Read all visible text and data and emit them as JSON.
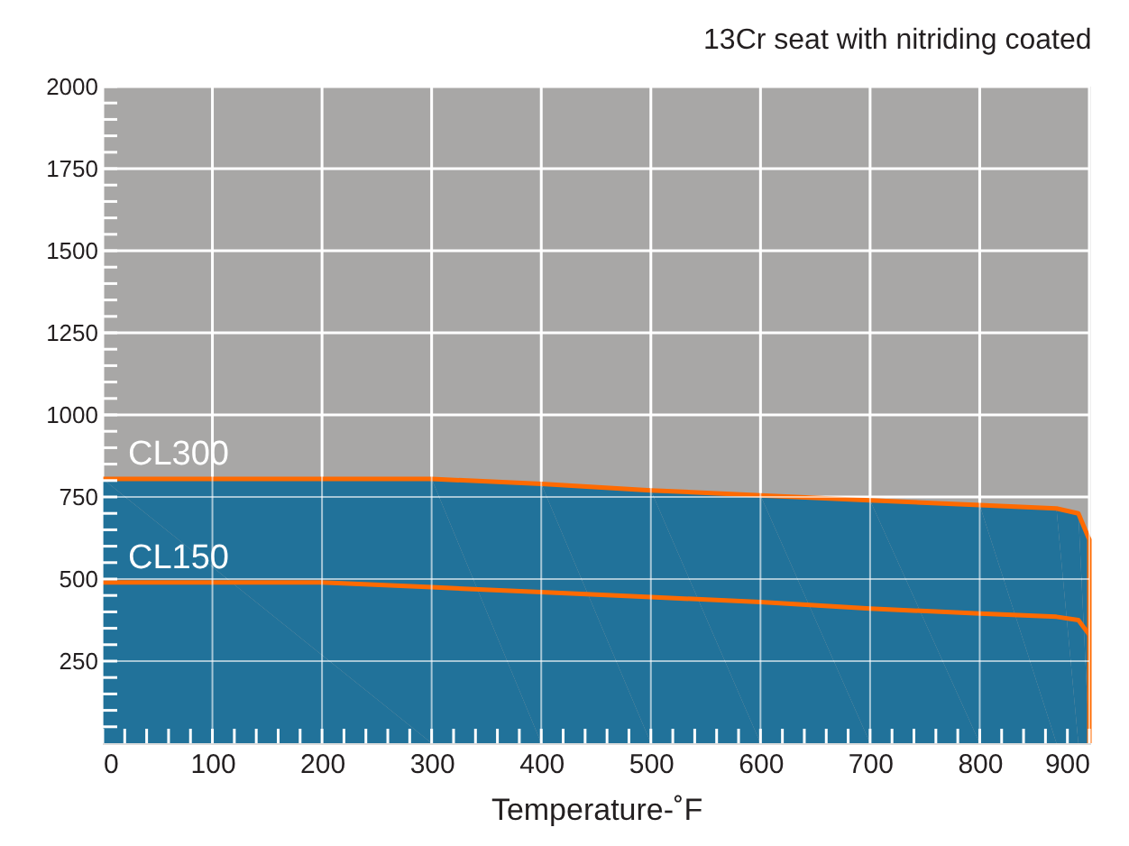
{
  "chart_data": {
    "type": "area",
    "title": "13Cr seat with nitriding coated",
    "xlabel": "Temperature-˚F",
    "xlim": [
      0,
      900
    ],
    "ylim": [
      0,
      2000
    ],
    "xticks": [
      0,
      {
        "value": 20,
        "label": null
      },
      {
        "value": 40,
        "label": null
      },
      {
        "value": 60,
        "label": null
      },
      {
        "value": 80,
        "label": null
      },
      100,
      {
        "value": 120,
        "label": null
      },
      {
        "value": 140,
        "label": null
      },
      {
        "value": 160,
        "label": null
      },
      {
        "value": 180,
        "label": null
      },
      200,
      {
        "value": 220,
        "label": null
      },
      {
        "value": 240,
        "label": null
      },
      {
        "value": 260,
        "label": null
      },
      {
        "value": 280,
        "label": null
      },
      300,
      {
        "value": 320,
        "label": null
      },
      {
        "value": 340,
        "label": null
      },
      {
        "value": 360,
        "label": null
      },
      {
        "value": 380,
        "label": null
      },
      400,
      {
        "value": 420,
        "label": null
      },
      {
        "value": 440,
        "label": null
      },
      {
        "value": 460,
        "label": null
      },
      {
        "value": 480,
        "label": null
      },
      500,
      {
        "value": 520,
        "label": null
      },
      {
        "value": 540,
        "label": null
      },
      {
        "value": 560,
        "label": null
      },
      {
        "value": 580,
        "label": null
      },
      600,
      {
        "value": 620,
        "label": null
      },
      {
        "value": 640,
        "label": null
      },
      {
        "value": 660,
        "label": null
      },
      {
        "value": 680,
        "label": null
      },
      700,
      {
        "value": 720,
        "label": null
      },
      {
        "value": 740,
        "label": null
      },
      {
        "value": 760,
        "label": null
      },
      {
        "value": 780,
        "label": null
      },
      800,
      {
        "value": 820,
        "label": null
      },
      {
        "value": 840,
        "label": null
      },
      {
        "value": 860,
        "label": null
      },
      {
        "value": 880,
        "label": null
      },
      900
    ],
    "yticks": [
      {
        "value": 50,
        "label": null
      },
      {
        "value": 100,
        "label": null
      },
      {
        "value": 150,
        "label": null
      },
      {
        "value": 200,
        "label": null
      },
      250,
      {
        "value": 300,
        "label": null
      },
      {
        "value": 350,
        "label": null
      },
      {
        "value": 400,
        "label": null
      },
      {
        "value": 450,
        "label": null
      },
      500,
      {
        "value": 550,
        "label": null
      },
      {
        "value": 600,
        "label": null
      },
      {
        "value": 650,
        "label": null
      },
      {
        "value": 700,
        "label": null
      },
      750,
      {
        "value": 800,
        "label": null
      },
      {
        "value": 850,
        "label": null
      },
      {
        "value": 900,
        "label": null
      },
      {
        "value": 950,
        "label": null
      },
      1000,
      {
        "value": 1050,
        "label": null
      },
      {
        "value": 1100,
        "label": null
      },
      {
        "value": 1150,
        "label": null
      },
      {
        "value": 1200,
        "label": null
      },
      1250,
      {
        "value": 1300,
        "label": null
      },
      {
        "value": 1350,
        "label": null
      },
      {
        "value": 1400,
        "label": null
      },
      {
        "value": 1450,
        "label": null
      },
      1500,
      {
        "value": 1550,
        "label": null
      },
      {
        "value": 1600,
        "label": null
      },
      {
        "value": 1650,
        "label": null
      },
      {
        "value": 1700,
        "label": null
      },
      1750,
      {
        "value": 1800,
        "label": null
      },
      {
        "value": 1850,
        "label": null
      },
      {
        "value": 1900,
        "label": null
      },
      {
        "value": 1950,
        "label": null
      },
      2000
    ],
    "grid": true,
    "series": [
      {
        "name": "CL300",
        "color": "#21729a",
        "x": [
          0,
          300,
          400,
          500,
          600,
          700,
          800,
          870,
          890,
          900,
          900
        ],
        "values": [
          805,
          805,
          790,
          770,
          755,
          740,
          725,
          715,
          700,
          620,
          0
        ]
      },
      {
        "name": "CL150",
        "type": "line",
        "color": "#ff6a00",
        "x": [
          0,
          200,
          300,
          400,
          500,
          600,
          700,
          800,
          870,
          890,
          900
        ],
        "values": [
          490,
          490,
          475,
          460,
          445,
          430,
          410,
          395,
          385,
          375,
          330
        ]
      }
    ]
  }
}
